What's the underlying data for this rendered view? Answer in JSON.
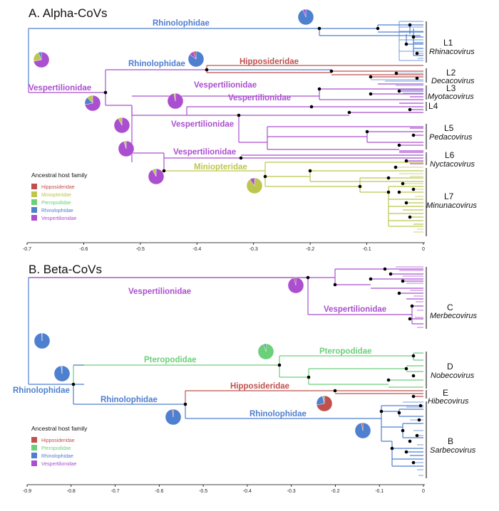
{
  "colors": {
    "Hipposideridae": "#c0504d",
    "Miniopteridae": "#bcc64d",
    "Pteropodidae": "#6ccf7a",
    "Rhinolophidae": "#4f7fcf",
    "Vespertilionidae": "#aa4fcf"
  },
  "panelA": {
    "title": "A. Alpha-CoVs",
    "legend_title": "Ancestral host family",
    "legend_items": [
      "Hipposideridae",
      "Miniopteridae",
      "Pteropodidae",
      "Rhinolophidae",
      "Vespertilionidae"
    ],
    "axis_ticks": [
      "-0.7",
      "-0.6",
      "-0.5",
      "-0.4",
      "-0.3",
      "-0.2",
      "-0.1",
      "0"
    ],
    "host_labels": [
      {
        "text": "Rhinolophidae",
        "family": "Rhinolophidae"
      },
      {
        "text": "Rhinolophidae",
        "family": "Rhinolophidae"
      },
      {
        "text": "Hipposideridae",
        "family": "Hipposideridae"
      },
      {
        "text": "Vespertilionidae",
        "family": "Vespertilionidae"
      },
      {
        "text": "Vespertilionidae",
        "family": "Vespertilionidae"
      },
      {
        "text": "Vespertilionidae",
        "family": "Vespertilionidae"
      },
      {
        "text": "Vespertilionidae",
        "family": "Vespertilionidae"
      },
      {
        "text": "Vespertilionidae",
        "family": "Vespertilionidae"
      },
      {
        "text": "Miniopteridae",
        "family": "Miniopteridae"
      }
    ],
    "clades": [
      {
        "label": "L1",
        "genus": "Rhinacovirus"
      },
      {
        "label": "L2",
        "genus": "Decacovirus"
      },
      {
        "label": "L3",
        "genus": "Myotacovirus"
      },
      {
        "label": "L4",
        "genus": ""
      },
      {
        "label": "L5",
        "genus": "Pedacovirus"
      },
      {
        "label": "L6",
        "genus": "Nyctacovirus"
      },
      {
        "label": "L7",
        "genus": "Minunacovirus"
      }
    ],
    "pies": [
      {
        "name": "root",
        "fractions": {
          "Vespertilionidae": 0.72,
          "Miniopteridae": 0.22,
          "Rhinolophidae": 0.06
        }
      },
      {
        "name": "vesp-node-1",
        "fractions": {
          "Vespertilionidae": 0.72,
          "Rhinolophidae": 0.16,
          "Miniopteridae": 0.12
        }
      },
      {
        "name": "rhinolophidae-node-1",
        "fractions": {
          "Rhinolophidae": 0.94,
          "Vespertilionidae": 0.06
        }
      },
      {
        "name": "rhinolophidae-node-2",
        "fractions": {
          "Rhinolophidae": 0.85,
          "Vespertilionidae": 0.1,
          "Hipposideridae": 0.05
        }
      },
      {
        "name": "vesp-node-2",
        "fractions": {
          "Vespertilionidae": 0.97,
          "Miniopteridae": 0.03
        }
      },
      {
        "name": "vesp-node-3",
        "fractions": {
          "Vespertilionidae": 0.92,
          "Miniopteridae": 0.08
        }
      },
      {
        "name": "vesp-node-4",
        "fractions": {
          "Vespertilionidae": 0.95,
          "Miniopteridae": 0.05
        }
      },
      {
        "name": "vesp-node-5",
        "fractions": {
          "Vespertilionidae": 0.92,
          "Miniopteridae": 0.08
        }
      },
      {
        "name": "minio-node",
        "fractions": {
          "Miniopteridae": 0.9,
          "Vespertilionidae": 0.1
        }
      }
    ]
  },
  "panelB": {
    "title": "B. Beta-CoVs",
    "legend_title": "Ancestral host family",
    "legend_items": [
      "Hipposideridae",
      "Pteropodidae",
      "Rhinolophidae",
      "Vespertilionidae"
    ],
    "axis_ticks": [
      "-0.9",
      "-0.8",
      "-0.7",
      "-0.6",
      "-0.5",
      "-0.4",
      "-0.3",
      "-0.2",
      "-0.1",
      "0"
    ],
    "host_labels": [
      {
        "text": "Vespertilionidae",
        "family": "Vespertilionidae"
      },
      {
        "text": "Vespertilionidae",
        "family": "Vespertilionidae"
      },
      {
        "text": "Pteropodidae",
        "family": "Pteropodidae"
      },
      {
        "text": "Pteropodidae",
        "family": "Pteropodidae"
      },
      {
        "text": "Hipposideridae",
        "family": "Hipposideridae"
      },
      {
        "text": "Rhinolophidae",
        "family": "Rhinolophidae"
      },
      {
        "text": "Rhinolophidae",
        "family": "Rhinolophidae"
      },
      {
        "text": "Rhinolophidae",
        "family": "Rhinolophidae"
      }
    ],
    "clades": [
      {
        "label": "C",
        "genus": "Merbecovirus"
      },
      {
        "label": "D",
        "genus": "Nobecovirus"
      },
      {
        "label": "E",
        "genus": "Hibecovirus"
      },
      {
        "label": "B",
        "genus": "Sarbecovirus"
      }
    ],
    "pies": [
      {
        "name": "root",
        "fractions": {
          "Rhinolophidae": 0.99,
          "Vespertilionidae": 0.01
        }
      },
      {
        "name": "vesp-node",
        "fractions": {
          "Vespertilionidae": 0.96,
          "Hipposideridae": 0.04
        }
      },
      {
        "name": "rhino-node-1",
        "fractions": {
          "Rhinolophidae": 0.98,
          "Pteropodidae": 0.02
        }
      },
      {
        "name": "ptero-node",
        "fractions": {
          "Pteropodidae": 0.96,
          "Rhinolophidae": 0.04
        }
      },
      {
        "name": "rhino-node-2",
        "fractions": {
          "Rhinolophidae": 0.98,
          "Hipposideridae": 0.02
        }
      },
      {
        "name": "hippo-node",
        "fractions": {
          "Hipposideridae": 0.72,
          "Rhinolophidae": 0.24,
          "Pteropodidae": 0.04
        }
      },
      {
        "name": "rhino-node-3",
        "fractions": {
          "Rhinolophidae": 0.97,
          "Hipposideridae": 0.03
        }
      }
    ]
  }
}
